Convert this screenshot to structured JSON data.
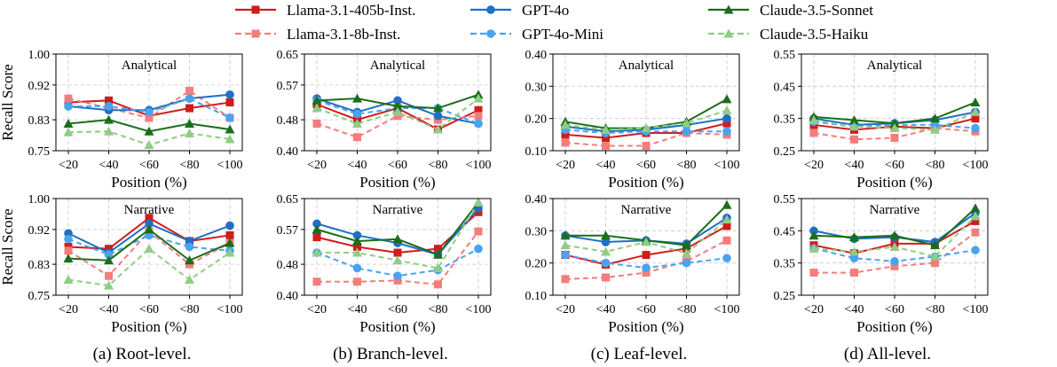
{
  "legend": {
    "series": [
      {
        "name": "Llama-3.1-405b-Inst.",
        "color": "#d01c1c",
        "dashed": false,
        "marker": "square"
      },
      {
        "name": "Llama-3.1-8b-Inst.",
        "color": "#f47c7c",
        "dashed": true,
        "marker": "square"
      },
      {
        "name": "GPT-4o",
        "color": "#1f6fc5",
        "dashed": false,
        "marker": "circle"
      },
      {
        "name": "GPT-4o-Mini",
        "color": "#4aa3ee",
        "dashed": true,
        "marker": "circle"
      },
      {
        "name": "Claude-3.5-Sonnet",
        "color": "#1a6e1a",
        "dashed": false,
        "marker": "triangle"
      },
      {
        "name": "Claude-3.5-Haiku",
        "color": "#90cc86",
        "dashed": true,
        "marker": "triangle"
      }
    ]
  },
  "captions": [
    "(a) Root-level.",
    "(b) Branch-level.",
    "(c) Leaf-level.",
    "(d) All-level."
  ],
  "chart_data": [
    {
      "type": "line",
      "title": "Analytical",
      "xlabel": "Position (%)",
      "ylabel": "Recall Score",
      "categories": [
        "<20",
        "<40",
        "<60",
        "<80",
        "<100"
      ],
      "ylim": [
        0.75,
        1.0
      ],
      "yticks": [
        "0.75",
        "0.83",
        "0.92",
        "1.00"
      ],
      "grid": true,
      "series": [
        {
          "name": "Llama-3.1-405b-Inst.",
          "values": [
            0.875,
            0.88,
            0.84,
            0.86,
            0.875
          ]
        },
        {
          "name": "Llama-3.1-8b-Inst.",
          "values": [
            0.885,
            0.86,
            0.835,
            0.905,
            0.835
          ]
        },
        {
          "name": "GPT-4o",
          "values": [
            0.865,
            0.855,
            0.855,
            0.885,
            0.895
          ]
        },
        {
          "name": "GPT-4o-Mini",
          "values": [
            0.865,
            0.865,
            0.85,
            0.885,
            0.835
          ]
        },
        {
          "name": "Claude-3.5-Sonnet",
          "values": [
            0.82,
            0.83,
            0.8,
            0.82,
            0.805
          ]
        },
        {
          "name": "Claude-3.5-Haiku",
          "values": [
            0.798,
            0.8,
            0.765,
            0.795,
            0.78
          ]
        }
      ]
    },
    {
      "type": "line",
      "title": "Analytical",
      "xlabel": "Position (%)",
      "ylabel": "",
      "categories": [
        "<20",
        "<40",
        "<60",
        "<80",
        "<100"
      ],
      "ylim": [
        0.4,
        0.65
      ],
      "yticks": [
        "0.40",
        "0.48",
        "0.57",
        "0.65"
      ],
      "grid": true,
      "series": [
        {
          "name": "Llama-3.1-405b-Inst.",
          "values": [
            0.52,
            0.48,
            0.51,
            0.455,
            0.505
          ]
        },
        {
          "name": "Llama-3.1-8b-Inst.",
          "values": [
            0.47,
            0.435,
            0.49,
            0.48,
            0.49
          ]
        },
        {
          "name": "GPT-4o",
          "values": [
            0.535,
            0.5,
            0.53,
            0.49,
            0.47
          ]
        },
        {
          "name": "GPT-4o-Mini",
          "values": [
            0.53,
            0.495,
            0.51,
            0.51,
            0.47
          ]
        },
        {
          "name": "Claude-3.5-Sonnet",
          "values": [
            0.53,
            0.535,
            0.515,
            0.51,
            0.545
          ]
        },
        {
          "name": "Claude-3.5-Haiku",
          "values": [
            0.51,
            0.47,
            0.5,
            0.455,
            0.535
          ]
        }
      ]
    },
    {
      "type": "line",
      "title": "Analytical",
      "xlabel": "Position (%)",
      "ylabel": "",
      "categories": [
        "<20",
        "<40",
        "<60",
        "<80",
        "<100"
      ],
      "ylim": [
        0.1,
        0.4
      ],
      "yticks": [
        "0.10",
        "0.20",
        "0.30",
        "0.40"
      ],
      "grid": true,
      "series": [
        {
          "name": "Llama-3.1-405b-Inst.",
          "values": [
            0.15,
            0.14,
            0.155,
            0.155,
            0.185
          ]
        },
        {
          "name": "Llama-3.1-8b-Inst.",
          "values": [
            0.125,
            0.115,
            0.115,
            0.155,
            0.15
          ]
        },
        {
          "name": "GPT-4o",
          "values": [
            0.175,
            0.16,
            0.165,
            0.18,
            0.2
          ]
        },
        {
          "name": "GPT-4o-Mini",
          "values": [
            0.165,
            0.155,
            0.16,
            0.16,
            0.16
          ]
        },
        {
          "name": "Claude-3.5-Sonnet",
          "values": [
            0.19,
            0.17,
            0.17,
            0.19,
            0.26
          ]
        },
        {
          "name": "Claude-3.5-Haiku",
          "values": [
            0.18,
            0.165,
            0.17,
            0.185,
            0.225
          ]
        }
      ]
    },
    {
      "type": "line",
      "title": "Analytical",
      "xlabel": "Position (%)",
      "ylabel": "",
      "categories": [
        "<20",
        "<40",
        "<60",
        "<80",
        "<100"
      ],
      "ylim": [
        0.25,
        0.55
      ],
      "yticks": [
        "0.25",
        "0.35",
        "0.45",
        "0.55"
      ],
      "grid": true,
      "series": [
        {
          "name": "Llama-3.1-405b-Inst.",
          "values": [
            0.33,
            0.315,
            0.325,
            0.32,
            0.35
          ]
        },
        {
          "name": "Llama-3.1-8b-Inst.",
          "values": [
            0.305,
            0.285,
            0.29,
            0.32,
            0.31
          ]
        },
        {
          "name": "GPT-4o",
          "values": [
            0.35,
            0.33,
            0.335,
            0.345,
            0.37
          ]
        },
        {
          "name": "GPT-4o-Mini",
          "values": [
            0.34,
            0.325,
            0.33,
            0.33,
            0.32
          ]
        },
        {
          "name": "Claude-3.5-Sonnet",
          "values": [
            0.355,
            0.345,
            0.335,
            0.35,
            0.4
          ]
        },
        {
          "name": "Claude-3.5-Haiku",
          "values": [
            0.345,
            0.325,
            0.32,
            0.315,
            0.37
          ]
        }
      ]
    },
    {
      "type": "line",
      "title": "Narrative",
      "xlabel": "Position (%)",
      "ylabel": "Recall Score",
      "categories": [
        "<20",
        "<40",
        "<60",
        "<80",
        "<100"
      ],
      "ylim": [
        0.75,
        1.0
      ],
      "yticks": [
        "0.75",
        "0.83",
        "0.92",
        "1.00"
      ],
      "grid": true,
      "series": [
        {
          "name": "Llama-3.1-405b-Inst.",
          "values": [
            0.875,
            0.87,
            0.95,
            0.89,
            0.905
          ]
        },
        {
          "name": "Llama-3.1-8b-Inst.",
          "values": [
            0.865,
            0.8,
            0.915,
            0.83,
            0.885
          ]
        },
        {
          "name": "GPT-4o",
          "values": [
            0.91,
            0.86,
            0.935,
            0.89,
            0.93
          ]
        },
        {
          "name": "GPT-4o-Mini",
          "values": [
            0.895,
            0.855,
            0.905,
            0.875,
            0.865
          ]
        },
        {
          "name": "Claude-3.5-Sonnet",
          "values": [
            0.845,
            0.84,
            0.92,
            0.84,
            0.885
          ]
        },
        {
          "name": "Claude-3.5-Haiku",
          "values": [
            0.79,
            0.775,
            0.87,
            0.79,
            0.86
          ]
        }
      ]
    },
    {
      "type": "line",
      "title": "Narrative",
      "xlabel": "Position (%)",
      "ylabel": "",
      "categories": [
        "<20",
        "<40",
        "<60",
        "<80",
        "<100"
      ],
      "ylim": [
        0.4,
        0.65
      ],
      "yticks": [
        "0.40",
        "0.48",
        "0.57",
        "0.65"
      ],
      "grid": true,
      "series": [
        {
          "name": "Llama-3.1-405b-Inst.",
          "values": [
            0.55,
            0.525,
            0.51,
            0.52,
            0.615
          ]
        },
        {
          "name": "Llama-3.1-8b-Inst.",
          "values": [
            0.435,
            0.435,
            0.438,
            0.428,
            0.565
          ]
        },
        {
          "name": "GPT-4o",
          "values": [
            0.585,
            0.555,
            0.535,
            0.505,
            0.625
          ]
        },
        {
          "name": "GPT-4o-Mini",
          "values": [
            0.51,
            0.47,
            0.45,
            0.465,
            0.52
          ]
        },
        {
          "name": "Claude-3.5-Sonnet",
          "values": [
            0.57,
            0.54,
            0.545,
            0.505,
            0.64
          ]
        },
        {
          "name": "Claude-3.5-Haiku",
          "values": [
            0.51,
            0.51,
            0.49,
            0.47,
            0.64
          ]
        }
      ]
    },
    {
      "type": "line",
      "title": "Narrative",
      "xlabel": "Position (%)",
      "ylabel": "",
      "categories": [
        "<20",
        "<40",
        "<60",
        "<80",
        "<100"
      ],
      "ylim": [
        0.1,
        0.4
      ],
      "yticks": [
        "0.10",
        "0.20",
        "0.30",
        "0.40"
      ],
      "grid": true,
      "series": [
        {
          "name": "Llama-3.1-405b-Inst.",
          "values": [
            0.225,
            0.195,
            0.225,
            0.245,
            0.315
          ]
        },
        {
          "name": "Llama-3.1-8b-Inst.",
          "values": [
            0.15,
            0.155,
            0.17,
            0.205,
            0.27
          ]
        },
        {
          "name": "GPT-4o",
          "values": [
            0.285,
            0.265,
            0.27,
            0.26,
            0.34
          ]
        },
        {
          "name": "GPT-4o-Mini",
          "values": [
            0.225,
            0.2,
            0.185,
            0.2,
            0.215
          ]
        },
        {
          "name": "Claude-3.5-Sonnet",
          "values": [
            0.285,
            0.285,
            0.27,
            0.255,
            0.38
          ]
        },
        {
          "name": "Claude-3.5-Haiku",
          "values": [
            0.255,
            0.235,
            0.265,
            0.23,
            0.335
          ]
        }
      ]
    },
    {
      "type": "line",
      "title": "Narrative",
      "xlabel": "Position (%)",
      "ylabel": "",
      "categories": [
        "<20",
        "<40",
        "<60",
        "<80",
        "<100"
      ],
      "ylim": [
        0.25,
        0.55
      ],
      "yticks": [
        "0.25",
        "0.35",
        "0.45",
        "0.55"
      ],
      "grid": true,
      "series": [
        {
          "name": "Llama-3.1-405b-Inst.",
          "values": [
            0.405,
            0.38,
            0.41,
            0.41,
            0.48
          ]
        },
        {
          "name": "Llama-3.1-8b-Inst.",
          "values": [
            0.32,
            0.32,
            0.34,
            0.35,
            0.445
          ]
        },
        {
          "name": "GPT-4o",
          "values": [
            0.45,
            0.425,
            0.43,
            0.415,
            0.505
          ]
        },
        {
          "name": "GPT-4o-Mini",
          "values": [
            0.395,
            0.365,
            0.355,
            0.37,
            0.39
          ]
        },
        {
          "name": "Claude-3.5-Sonnet",
          "values": [
            0.435,
            0.43,
            0.435,
            0.405,
            0.52
          ]
        },
        {
          "name": "Claude-3.5-Haiku",
          "values": [
            0.395,
            0.385,
            0.4,
            0.37,
            0.495
          ]
        }
      ]
    }
  ]
}
